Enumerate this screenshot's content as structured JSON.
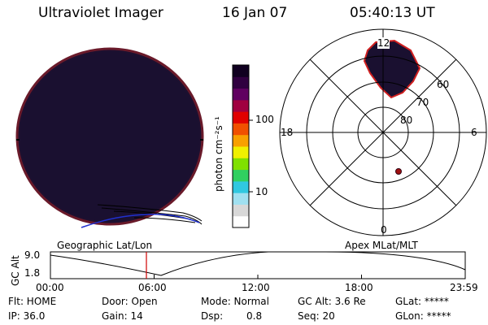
{
  "header": {
    "instrument": "Ultraviolet Imager",
    "date": "16 Jan 07",
    "time": "05:40:13 UT"
  },
  "colorbar": {
    "unit_label": "photon cm⁻²s⁻¹",
    "ticks": [
      "100",
      "10"
    ],
    "colors": [
      "#ffffff",
      "#d8d8d8",
      "#a0e0f0",
      "#30c8e0",
      "#30d060",
      "#80e000",
      "#f0f000",
      "#f8a000",
      "#f05000",
      "#e00000",
      "#a00040",
      "#600060",
      "#300040",
      "#100020"
    ]
  },
  "polar": {
    "top_label": "12",
    "left_label": "18",
    "right_label": "6",
    "bottom_label": "0",
    "lat_labels": [
      "60",
      "70",
      "80"
    ]
  },
  "labels": {
    "geo": "Geographic Lat/Lon",
    "apex": "Apex MLat/MLT"
  },
  "altplot": {
    "ylabel": "GC Alt",
    "ymax": "9.0",
    "ymin": "1.8",
    "xticks": [
      "00:00",
      "06:00",
      "12:00",
      "18:00",
      "23:59"
    ],
    "marker_hour": 5.67
  },
  "info": {
    "flt_label": "Flt: HOME",
    "ip_label": "IP: 36.0",
    "door_label": "Door: Open",
    "gain_label": "Gain: 14",
    "mode_label": "Mode: Normal",
    "dsp_label": "Dsp:",
    "dsp_value": "0.8",
    "gcalt_label": "GC Alt: 3.6 Re",
    "seq_label": "Seq: 20",
    "glat_label": "GLat: *****",
    "glon_label": "GLon: *****"
  }
}
